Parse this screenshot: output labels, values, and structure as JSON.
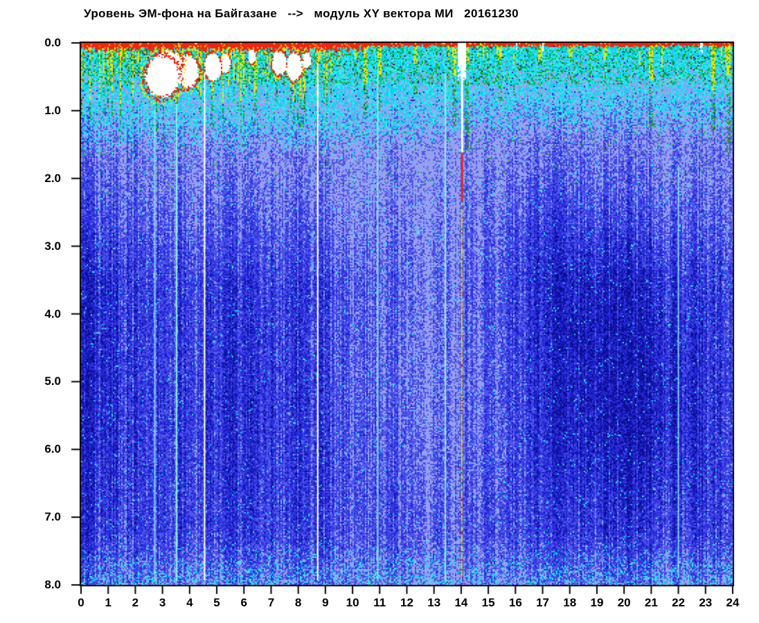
{
  "window": {
    "background": "#ffffff"
  },
  "chart_data": {
    "type": "heatmap",
    "title": "Уровень ЭМ-фона на Байгазане   -->   модуль XY вектора МИ   20161230",
    "station": "Байгазан",
    "measure": "модуль XY вектора МИ",
    "date": "20161230",
    "xlabel": "",
    "ylabel": "",
    "x_axis": {
      "min": 0,
      "max": 24,
      "step": 1,
      "tick_labels": [
        "0",
        "1",
        "2",
        "3",
        "4",
        "5",
        "6",
        "7",
        "8",
        "9",
        "10",
        "11",
        "12",
        "13",
        "14",
        "15",
        "16",
        "17",
        "18",
        "19",
        "20",
        "21",
        "22",
        "23",
        "24"
      ]
    },
    "y_axis": {
      "min": 0,
      "max": 8,
      "step": 1,
      "tick_labels": [
        "0.0",
        "1.0",
        "2.0",
        "3.0",
        "4.0",
        "5.0",
        "6.0",
        "7.0",
        "8.0"
      ]
    },
    "grid": false,
    "legend_position": "none",
    "description": "24-hour EM-background spectrogram: intense red/yellow/green activity band at 0-1 units depth (strongest hours 0-10 with white saturation blobs near hours 3-8), cyan layer to ~1 unit, speckled blue field below with light vertical streaks, white dropout lines near hours 4.5 and 8.7, a white/red/yellow event line at hour 14, and dark blue quiet clouds on the left edge and hours 16-23.",
    "palette": {
      "white": "#ffffff",
      "red": "#f42410",
      "orange": "#ff9800",
      "yellow": "#f2e20c",
      "green": "#23a41e",
      "darkgreen": "#137a12",
      "cyan": "#35ecec",
      "cyan2": "#00d6f0",
      "pale_cyan": "#8ff4f0",
      "light_blue": "#97a0f0",
      "mid_blue": "#5156ea",
      "blue": "#2b2fdf",
      "dark_blue": "#1619bb",
      "navy": "#0c0e8f",
      "axis": "#000000"
    },
    "render": {
      "seed": 161230,
      "cell": 2,
      "hot_region_end": 9.7,
      "cyan_zone": {
        "left_bottom": 1.04,
        "right_bottom": 0.82,
        "blend": 0.55
      },
      "red_band": {
        "left_max": 0.14,
        "right_max": 0.07
      },
      "base_dark": {
        "start": 1.25,
        "ramp": 2.3,
        "low": 0.2,
        "high": 0.62
      },
      "bottom_light": {
        "from": 7.2,
        "amount": 0.24
      },
      "white_blobs": [
        [
          3.0,
          0.5,
          0.62,
          0.3
        ],
        [
          3.2,
          0.28,
          0.5,
          0.16
        ],
        [
          3.9,
          0.42,
          0.42,
          0.24
        ],
        [
          4.85,
          0.36,
          0.3,
          0.2
        ],
        [
          5.3,
          0.3,
          0.2,
          0.14
        ],
        [
          6.3,
          0.2,
          0.13,
          0.1
        ],
        [
          7.3,
          0.3,
          0.26,
          0.17
        ],
        [
          7.85,
          0.36,
          0.3,
          0.2
        ],
        [
          8.3,
          0.26,
          0.16,
          0.12
        ]
      ],
      "top_gaps": [
        [
          13.85,
          14.2,
          0.55
        ],
        [
          16.0,
          16.07,
          0.12
        ],
        [
          17.0,
          17.06,
          0.12
        ],
        [
          22.8,
          22.9,
          0.15
        ]
      ],
      "white_lines": [
        [
          4.55,
          0.45,
          7.93
        ],
        [
          8.72,
          0.3,
          7.93
        ]
      ],
      "event_line": {
        "x": 14.02,
        "white_to": 1.62,
        "red_to": 2.35,
        "tail_to": 7.88
      },
      "cyan_lines": [
        [
          2.72,
          1.0,
          7.95
        ],
        [
          3.52,
          0.9,
          7.95
        ],
        [
          10.93,
          0.4,
          7.95
        ],
        [
          13.42,
          0.45,
          7.95
        ],
        [
          22.0,
          1.8,
          7.9
        ]
      ],
      "right_streaks": [
        [
          14.2,
          0.3,
          1.6
        ],
        [
          13.75,
          0.5,
          1.2
        ],
        [
          21.0,
          0.55,
          1.25
        ],
        [
          23.3,
          0.7,
          1.3
        ],
        [
          23.85,
          0.5,
          1.7
        ],
        [
          16.9,
          0.25,
          0.8
        ],
        [
          18.05,
          0.2,
          0.6
        ],
        [
          19.3,
          0.25,
          0.7
        ],
        [
          15.45,
          0.25,
          0.9
        ],
        [
          10.5,
          0.6,
          1.1
        ],
        [
          11.0,
          0.5,
          1.0
        ],
        [
          12.3,
          0.3,
          0.8
        ]
      ],
      "dark_clouds": [
        [
          19.6,
          4.6,
          3.1,
          2.1,
          0.34
        ],
        [
          21.0,
          5.9,
          2.2,
          1.4,
          0.12
        ],
        [
          0.8,
          4.6,
          1.0,
          3.4,
          0.3
        ],
        [
          5.8,
          5.2,
          2.9,
          2.4,
          0.16
        ],
        [
          17.0,
          2.6,
          1.5,
          1.0,
          0.12
        ]
      ],
      "light_clouds": [
        [
          12.4,
          4.6,
          2.6,
          2.9,
          0.26
        ],
        [
          14.9,
          5.0,
          0.9,
          3.0,
          0.12
        ],
        [
          9.8,
          2.0,
          1.5,
          1.2,
          0.1
        ]
      ]
    }
  }
}
